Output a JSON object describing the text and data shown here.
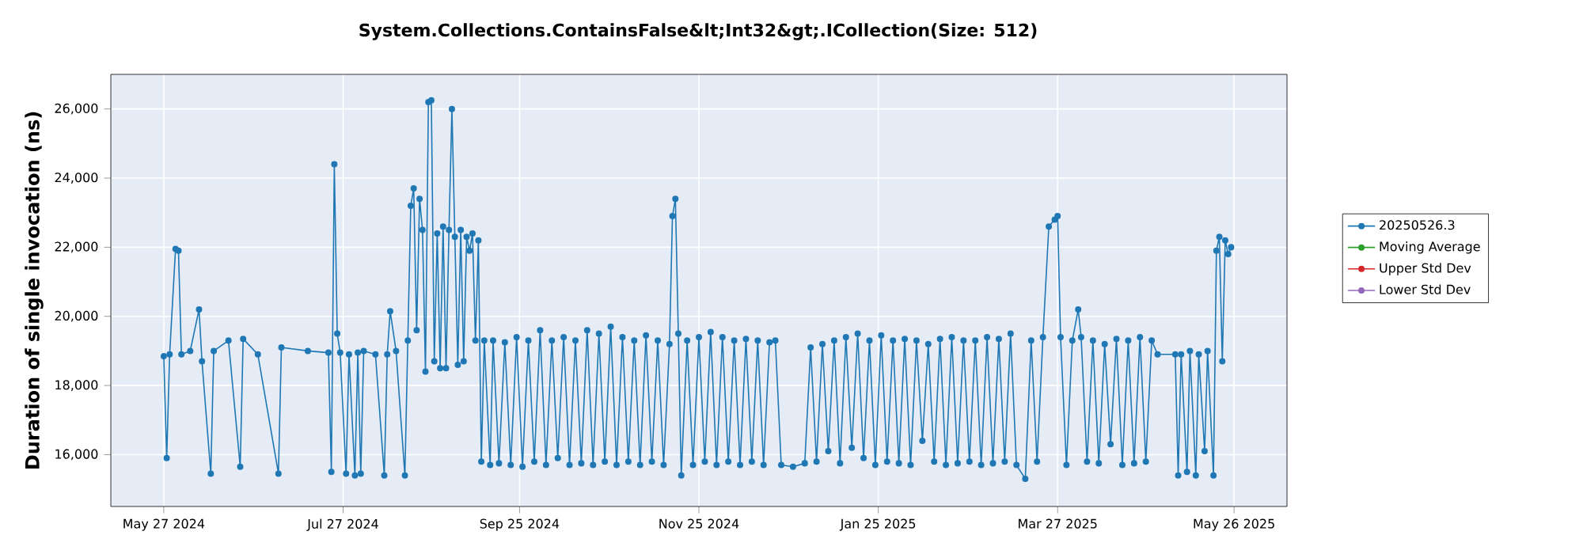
{
  "chart_data": {
    "type": "line",
    "title": "System.Collections.ContainsFalse&lt;Int32&gt;.ICollection(Size: 512)",
    "ylabel": "Duration of single invocation (ns)",
    "xlim": [
      "2024-05-09",
      "2025-06-13"
    ],
    "xticks": [
      {
        "value": "2024-05-27",
        "label": "May 27 2024"
      },
      {
        "value": "2024-07-27",
        "label": "Jul 27 2024"
      },
      {
        "value": "2024-09-25",
        "label": "Sep 25 2024"
      },
      {
        "value": "2024-11-25",
        "label": "Nov 25 2024"
      },
      {
        "value": "2025-01-25",
        "label": "Jan 25 2025"
      },
      {
        "value": "2025-03-27",
        "label": "Mar 27 2025"
      },
      {
        "value": "2025-05-26",
        "label": "May 26 2025"
      }
    ],
    "ylim": [
      14500,
      27000
    ],
    "yticks": [
      {
        "value": 16000,
        "label": "16,000"
      },
      {
        "value": 18000,
        "label": "18,000"
      },
      {
        "value": 20000,
        "label": "20,000"
      },
      {
        "value": 22000,
        "label": "22,000"
      },
      {
        "value": 24000,
        "label": "24,000"
      },
      {
        "value": 26000,
        "label": "26,000"
      }
    ],
    "grid": true,
    "legend": "right",
    "marker": "circle",
    "line_style": "solid",
    "series": [
      {
        "name": "20250526.3",
        "color": "#1f77b4",
        "x": [
          "2024-05-27",
          "2024-05-28",
          "2024-05-29",
          "2024-05-31",
          "2024-06-01",
          "2024-06-02",
          "2024-06-05",
          "2024-06-08",
          "2024-06-09",
          "2024-06-12",
          "2024-06-13",
          "2024-06-18",
          "2024-06-22",
          "2024-06-23",
          "2024-06-28",
          "2024-07-05",
          "2024-07-06",
          "2024-07-15",
          "2024-07-22",
          "2024-07-23",
          "2024-07-24",
          "2024-07-25",
          "2024-07-26",
          "2024-07-28",
          "2024-07-29",
          "2024-07-31",
          "2024-08-01",
          "2024-08-02",
          "2024-08-03",
          "2024-08-07",
          "2024-08-10",
          "2024-08-11",
          "2024-08-12",
          "2024-08-14",
          "2024-08-17",
          "2024-08-18",
          "2024-08-19",
          "2024-08-20",
          "2024-08-21",
          "2024-08-22",
          "2024-08-23",
          "2024-08-24",
          "2024-08-25",
          "2024-08-26",
          "2024-08-27",
          "2024-08-28",
          "2024-08-29",
          "2024-08-30",
          "2024-08-31",
          "2024-09-01",
          "2024-09-02",
          "2024-09-03",
          "2024-09-04",
          "2024-09-05",
          "2024-09-06",
          "2024-09-07",
          "2024-09-08",
          "2024-09-09",
          "2024-09-10",
          "2024-09-11",
          "2024-09-12",
          "2024-09-13",
          "2024-09-15",
          "2024-09-16",
          "2024-09-18",
          "2024-09-20",
          "2024-09-22",
          "2024-09-24",
          "2024-09-26",
          "2024-09-28",
          "2024-09-30",
          "2024-10-02",
          "2024-10-04",
          "2024-10-06",
          "2024-10-08",
          "2024-10-10",
          "2024-10-12",
          "2024-10-14",
          "2024-10-16",
          "2024-10-18",
          "2024-10-20",
          "2024-10-22",
          "2024-10-24",
          "2024-10-26",
          "2024-10-28",
          "2024-10-30",
          "2024-11-01",
          "2024-11-03",
          "2024-11-05",
          "2024-11-07",
          "2024-11-09",
          "2024-11-11",
          "2024-11-13",
          "2024-11-15",
          "2024-11-16",
          "2024-11-17",
          "2024-11-18",
          "2024-11-19",
          "2024-11-21",
          "2024-11-23",
          "2024-11-25",
          "2024-11-27",
          "2024-11-29",
          "2024-12-01",
          "2024-12-03",
          "2024-12-05",
          "2024-12-07",
          "2024-12-09",
          "2024-12-11",
          "2024-12-13",
          "2024-12-15",
          "2024-12-17",
          "2024-12-19",
          "2024-12-21",
          "2024-12-23",
          "2024-12-27",
          "2024-12-31",
          "2025-01-02",
          "2025-01-04",
          "2025-01-06",
          "2025-01-08",
          "2025-01-10",
          "2025-01-12",
          "2025-01-14",
          "2025-01-16",
          "2025-01-18",
          "2025-01-20",
          "2025-01-22",
          "2025-01-24",
          "2025-01-26",
          "2025-01-28",
          "2025-01-30",
          "2025-02-01",
          "2025-02-03",
          "2025-02-05",
          "2025-02-07",
          "2025-02-09",
          "2025-02-11",
          "2025-02-13",
          "2025-02-15",
          "2025-02-17",
          "2025-02-19",
          "2025-02-21",
          "2025-02-23",
          "2025-02-25",
          "2025-02-27",
          "2025-03-01",
          "2025-03-03",
          "2025-03-05",
          "2025-03-07",
          "2025-03-09",
          "2025-03-11",
          "2025-03-13",
          "2025-03-16",
          "2025-03-18",
          "2025-03-20",
          "2025-03-22",
          "2025-03-24",
          "2025-03-26",
          "2025-03-27",
          "2025-03-28",
          "2025-03-30",
          "2025-04-01",
          "2025-04-03",
          "2025-04-04",
          "2025-04-06",
          "2025-04-08",
          "2025-04-10",
          "2025-04-12",
          "2025-04-14",
          "2025-04-16",
          "2025-04-18",
          "2025-04-20",
          "2025-04-22",
          "2025-04-24",
          "2025-04-26",
          "2025-04-28",
          "2025-04-30",
          "2025-05-06",
          "2025-05-07",
          "2025-05-08",
          "2025-05-10",
          "2025-05-11",
          "2025-05-13",
          "2025-05-14",
          "2025-05-16",
          "2025-05-17",
          "2025-05-19",
          "2025-05-20",
          "2025-05-21",
          "2025-05-22",
          "2025-05-23",
          "2025-05-24",
          "2025-05-25"
        ],
        "values": [
          18850,
          15900,
          18900,
          21950,
          21900,
          18900,
          19000,
          20200,
          18700,
          15450,
          19000,
          19300,
          15650,
          19350,
          18900,
          15450,
          19100,
          19000,
          18950,
          15500,
          24400,
          19500,
          18950,
          15450,
          18900,
          15400,
          18950,
          15450,
          19000,
          18900,
          15400,
          18900,
          20150,
          19000,
          15400,
          19300,
          23200,
          23700,
          19600,
          23400,
          22500,
          18400,
          26200,
          26250,
          18700,
          22400,
          18500,
          22600,
          18500,
          22500,
          26000,
          22300,
          18600,
          22500,
          18700,
          22300,
          21900,
          22400,
          19300,
          22200,
          15800,
          19300,
          15700,
          19300,
          15750,
          19250,
          15700,
          19400,
          15650,
          19300,
          15800,
          19600,
          15700,
          19300,
          15900,
          19400,
          15700,
          19300,
          15750,
          19600,
          15700,
          19500,
          15800,
          19700,
          15700,
          19400,
          15800,
          19300,
          15700,
          19450,
          15800,
          19300,
          15700,
          19200,
          22900,
          23400,
          19500,
          15400,
          19300,
          15700,
          19400,
          15800,
          19550,
          15700,
          19400,
          15800,
          19300,
          15700,
          19350,
          15800,
          19300,
          15700,
          19250,
          19300,
          15700,
          15650,
          15750,
          19100,
          15800,
          19200,
          16100,
          19300,
          15750,
          19400,
          16200,
          19500,
          15900,
          19300,
          15700,
          19450,
          15800,
          19300,
          15750,
          19350,
          15700,
          19300,
          16400,
          19200,
          15800,
          19350,
          15700,
          19400,
          15750,
          19300,
          15800,
          19300,
          15700,
          19400,
          15750,
          19350,
          15800,
          19500,
          15700,
          15300,
          19300,
          15800,
          19400,
          22600,
          22800,
          22900,
          19400,
          15700,
          19300,
          20200,
          19400,
          15800,
          19300,
          15750,
          19200,
          16300,
          19350,
          15700,
          19300,
          15750,
          19400,
          15800,
          19300,
          18900,
          18900,
          15400,
          18900,
          15500,
          19000,
          15400,
          18900,
          16100,
          19000,
          15400,
          21900,
          22300,
          18700,
          22200,
          21800,
          22000
        ]
      },
      {
        "name": "Moving Average",
        "color": "#2ca02c"
      },
      {
        "name": "Upper Std Dev",
        "color": "#d62728"
      },
      {
        "name": "Lower Std Dev",
        "color": "#9467bd"
      }
    ]
  }
}
